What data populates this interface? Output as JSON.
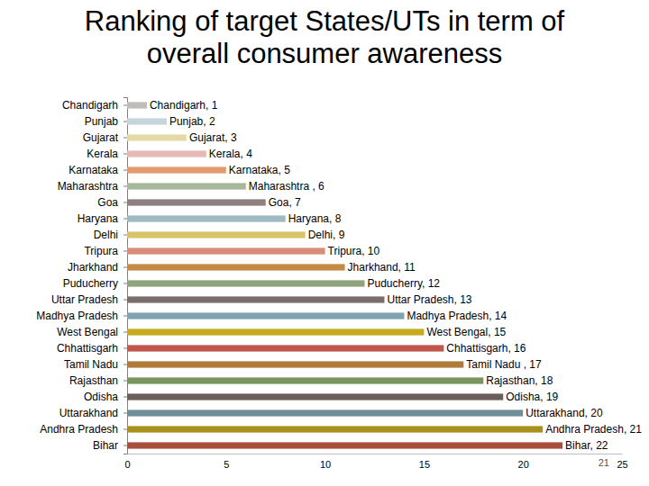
{
  "chart_data": {
    "type": "bar",
    "orientation": "horizontal",
    "title": "Ranking of target States/UTs in term of\noverall consumer awareness",
    "categories": [
      "Chandigarh",
      "Punjab",
      "Gujarat",
      "Kerala",
      "Karnataka",
      "Maharashtra",
      "Goa",
      "Haryana",
      "Delhi",
      "Tripura",
      "Jharkhand",
      "Puducherry",
      "Uttar Pradesh",
      "Madhya Pradesh",
      "West Bengal",
      "Chhattisgarh",
      "Tamil Nadu",
      "Rajasthan",
      "Odisha",
      "Uttarakhand",
      "Andhra Pradesh",
      "Bihar"
    ],
    "values": [
      1,
      2,
      3,
      4,
      5,
      6,
      7,
      8,
      9,
      10,
      11,
      12,
      13,
      14,
      15,
      16,
      17,
      18,
      19,
      20,
      21,
      22
    ],
    "value_labels": [
      "Chandigarh, 1",
      "Punjab, 2",
      "Gujarat, 3",
      "Kerala, 4",
      "Karnataka, 5",
      "Maharashtra , 6",
      "Goa, 7",
      "Haryana, 8",
      "Delhi, 9",
      "Tripura, 10",
      "Jharkhand, 11",
      "Puducherry, 12",
      "Uttar Pradesh, 13",
      "Madhya Pradesh, 14",
      "West Bengal, 15",
      "Chhattisgarh, 16",
      "Tamil Nadu , 17",
      "Rajasthan, 18",
      "Odisha, 19",
      "Uttarakhand, 20",
      "Andhra Pradesh, 21",
      "Bihar, 22"
    ],
    "data_labels": true,
    "colors": [
      "#c0bcbc",
      "#c5d5dc",
      "#e6d9a8",
      "#e6b8b7",
      "#e39a6e",
      "#a6b89b",
      "#8c8080",
      "#9db9c1",
      "#d9c36a",
      "#d98c7a",
      "#c48a47",
      "#8fa47d",
      "#7a6e6a",
      "#7fa3b0",
      "#c8aa1e",
      "#c0574a",
      "#b07a3a",
      "#7a9460",
      "#6b5f5a",
      "#6f8e9a",
      "#a8901a",
      "#a84e3c"
    ],
    "xlim": [
      0,
      25
    ],
    "xticks": [
      0,
      5,
      10,
      15,
      20,
      25
    ],
    "grid": false,
    "annotations": [
      "21"
    ]
  }
}
